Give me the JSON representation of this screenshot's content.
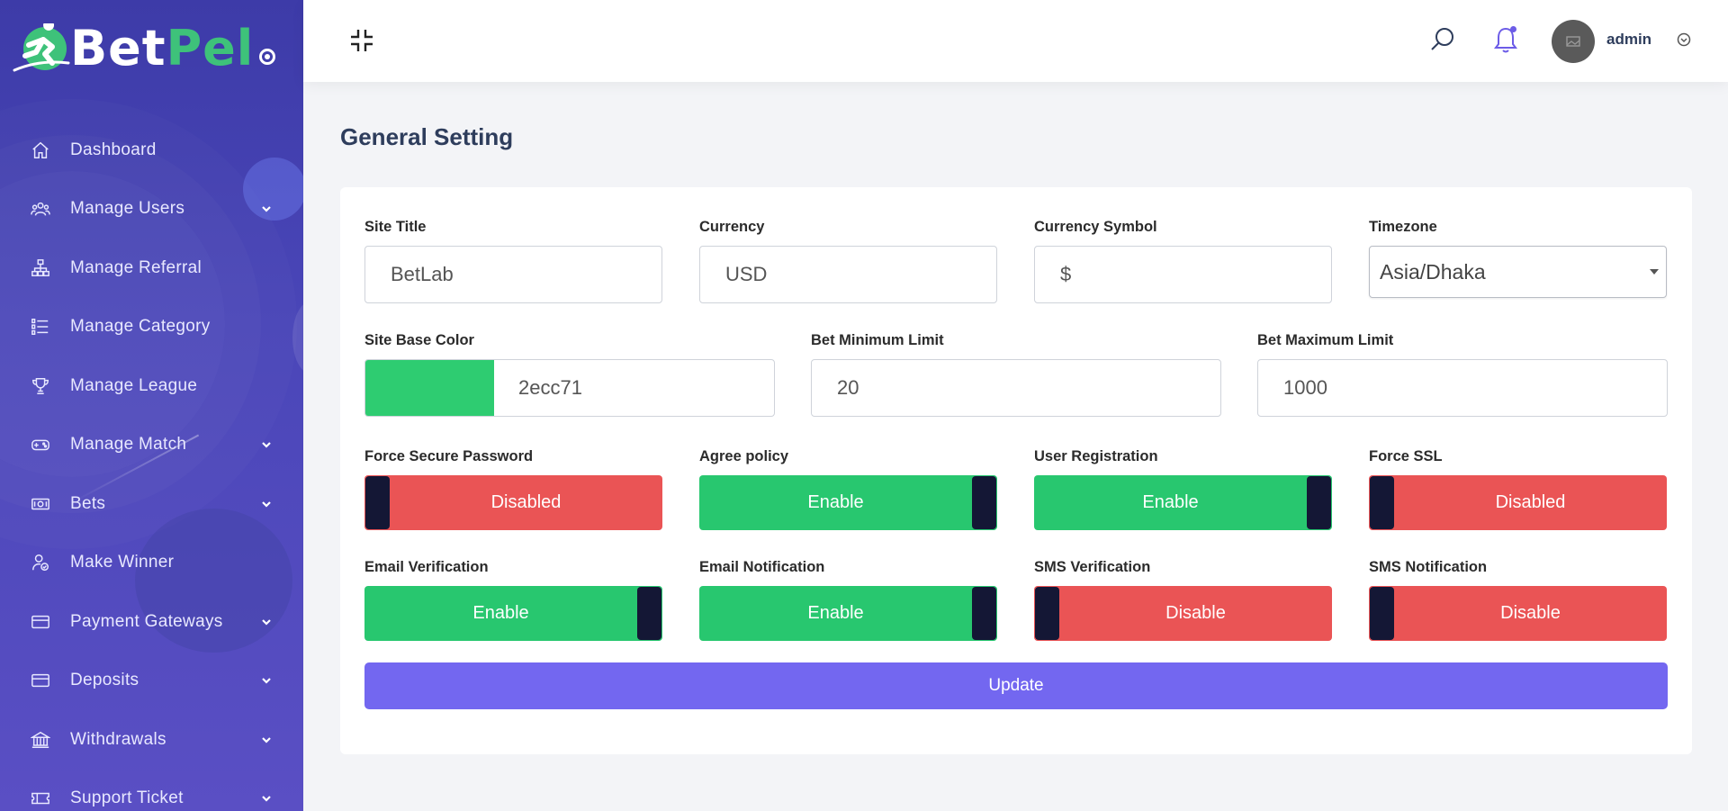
{
  "brand": {
    "part1": "Bet",
    "part2": "Pel"
  },
  "sidebar": {
    "items": [
      {
        "label": "Dashboard",
        "icon": "home-icon",
        "has_submenu": false
      },
      {
        "label": "Manage Users",
        "icon": "users-icon",
        "has_submenu": true
      },
      {
        "label": "Manage Referral",
        "icon": "sitemap-icon",
        "has_submenu": false
      },
      {
        "label": "Manage Category",
        "icon": "list-icon",
        "has_submenu": false
      },
      {
        "label": "Manage League",
        "icon": "trophy-icon",
        "has_submenu": false
      },
      {
        "label": "Manage Match",
        "icon": "gamepad-icon",
        "has_submenu": true
      },
      {
        "label": "Bets",
        "icon": "money-icon",
        "has_submenu": true
      },
      {
        "label": "Make Winner",
        "icon": "user-check-icon",
        "has_submenu": false
      },
      {
        "label": "Payment Gateways",
        "icon": "credit-card-icon",
        "has_submenu": true
      },
      {
        "label": "Deposits",
        "icon": "credit-card-icon",
        "has_submenu": true
      },
      {
        "label": "Withdrawals",
        "icon": "bank-icon",
        "has_submenu": true
      },
      {
        "label": "Support Ticket",
        "icon": "ticket-icon",
        "has_submenu": true
      }
    ]
  },
  "header": {
    "user_name": "admin",
    "accent_color": "#6c5ce7"
  },
  "page": {
    "title": "General Setting"
  },
  "form": {
    "site_title": {
      "label": "Site Title",
      "value": "BetLab"
    },
    "currency": {
      "label": "Currency",
      "value": "USD"
    },
    "currency_symbol": {
      "label": "Currency Symbol",
      "value": "$"
    },
    "timezone": {
      "label": "Timezone",
      "value": "Asia/Dhaka"
    },
    "site_base_color": {
      "label": "Site Base Color",
      "value": "2ecc71",
      "swatch": "#2ecc71"
    },
    "bet_min": {
      "label": "Bet Minimum Limit",
      "value": "20"
    },
    "bet_max": {
      "label": "Bet Maximum Limit",
      "value": "1000"
    },
    "toggles": [
      {
        "label": "Force Secure Password",
        "state": "Disabled",
        "on": false
      },
      {
        "label": "Agree policy",
        "state": "Enable",
        "on": true
      },
      {
        "label": "User Registration",
        "state": "Enable",
        "on": true
      },
      {
        "label": "Force SSL",
        "state": "Disabled",
        "on": false
      },
      {
        "label": "Email Verification",
        "state": "Enable",
        "on": true
      },
      {
        "label": "Email Notification",
        "state": "Enable",
        "on": true
      },
      {
        "label": "SMS Verification",
        "state": "Disable",
        "on": false
      },
      {
        "label": "SMS Notification",
        "state": "Disable",
        "on": false
      }
    ],
    "submit_label": "Update"
  },
  "colors": {
    "sidebar_bg": "#4a46b8",
    "enable_green": "#28c76f",
    "disable_red": "#ea5455",
    "knob": "#141735",
    "primary": "#7367f0"
  }
}
